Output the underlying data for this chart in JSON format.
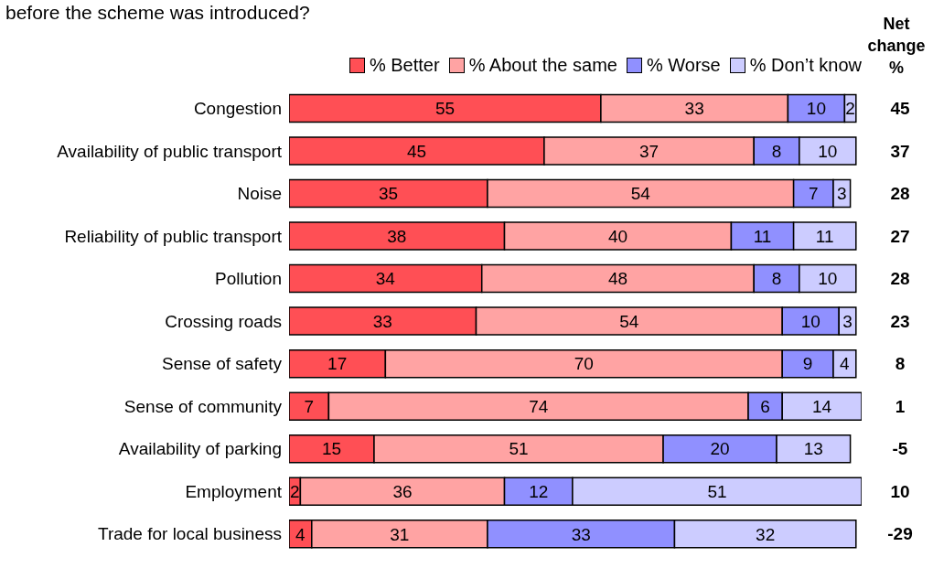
{
  "chart_data": {
    "type": "bar",
    "orientation": "horizontal",
    "stacked": true,
    "title": "before the scheme was introduced?",
    "categories": [
      "Congestion",
      "Availability of public transport",
      "Noise",
      "Reliability of public transport",
      "Pollution",
      "Crossing roads",
      "Sense of safety",
      "Sense of community",
      "Availability of parking",
      "Employment",
      "Trade for local business"
    ],
    "series": [
      {
        "name": "% Better",
        "color": "#ff4f55",
        "values": [
          55,
          45,
          35,
          38,
          34,
          33,
          17,
          7,
          15,
          2,
          4
        ]
      },
      {
        "name": "% About the same",
        "color": "#ffa3a3",
        "values": [
          33,
          37,
          54,
          40,
          48,
          54,
          70,
          74,
          51,
          36,
          31
        ]
      },
      {
        "name": "% Worse",
        "color": "#9090ff",
        "values": [
          10,
          8,
          7,
          11,
          8,
          10,
          9,
          6,
          20,
          12,
          33
        ]
      },
      {
        "name": "% Don’t know",
        "color": "#ccccff",
        "values": [
          2,
          10,
          3,
          11,
          10,
          3,
          4,
          14,
          13,
          51,
          32
        ]
      }
    ],
    "data_labels": true,
    "legend": "top right",
    "grid": false,
    "annotations": [
      "Net change %",
      "45",
      "37",
      "28",
      "27",
      "28",
      "23",
      "8",
      "1",
      "-5",
      "10",
      "-29"
    ]
  }
}
